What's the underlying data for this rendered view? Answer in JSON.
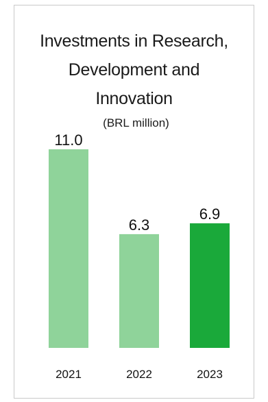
{
  "chart_data": {
    "type": "bar",
    "title_lines": [
      "Investments in Research,",
      "Development and",
      "Innovation"
    ],
    "subtitle": "(BRL million)",
    "categories": [
      "2021",
      "2022",
      "2023"
    ],
    "values": [
      11.0,
      6.3,
      6.9
    ],
    "value_labels": [
      "11.0",
      "6.3",
      "6.9"
    ],
    "ylim": [
      0,
      11.0
    ],
    "bar_colors": [
      "#8fd39a",
      "#8fd39a",
      "#1aa93a"
    ],
    "grid": false,
    "legend": "none"
  }
}
